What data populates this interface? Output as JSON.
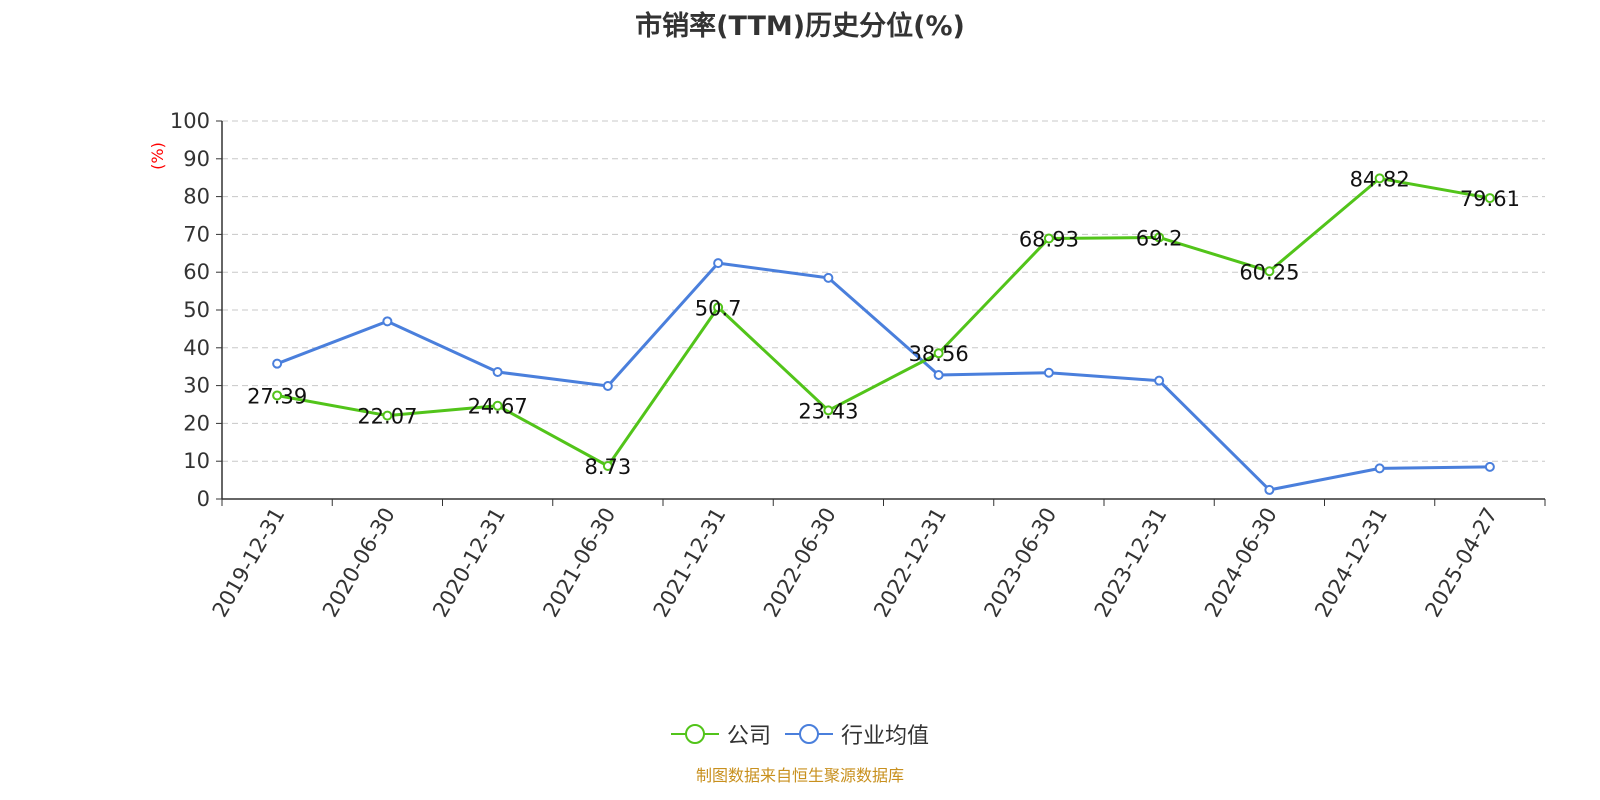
{
  "chart_data": {
    "type": "line",
    "title": "市销率(TTM)历史分位(%)",
    "ylabel": "(%)",
    "ylim": [
      0,
      100
    ],
    "yticks": [
      0,
      10,
      20,
      30,
      40,
      50,
      60,
      70,
      80,
      90,
      100
    ],
    "grid": true,
    "legend_position": "bottom",
    "categories": [
      "2019-12-31",
      "2020-06-30",
      "2020-12-31",
      "2021-06-30",
      "2021-12-31",
      "2022-06-30",
      "2022-12-31",
      "2023-06-30",
      "2023-12-31",
      "2024-06-30",
      "2024-12-31",
      "2025-04-27"
    ],
    "series": [
      {
        "name": "公司",
        "color": "#52c41a",
        "show_labels": true,
        "values": [
          27.39,
          22.07,
          24.67,
          8.73,
          50.7,
          23.43,
          38.56,
          68.93,
          69.2,
          60.25,
          84.82,
          79.61
        ],
        "labels": [
          "27.39",
          "22.07",
          "24.67",
          "8.73",
          "50.7",
          "23.43",
          "38.56",
          "68.93",
          "69.2",
          "60.25",
          "84.82",
          "79.61"
        ]
      },
      {
        "name": "行业均值",
        "color": "#4a7fdc",
        "show_labels": false,
        "values": [
          35.8,
          47.0,
          33.6,
          29.9,
          62.4,
          58.5,
          32.8,
          33.4,
          31.3,
          2.4,
          8.1,
          8.5
        ]
      }
    ]
  },
  "footer": "制图数据来自恒生聚源数据库"
}
